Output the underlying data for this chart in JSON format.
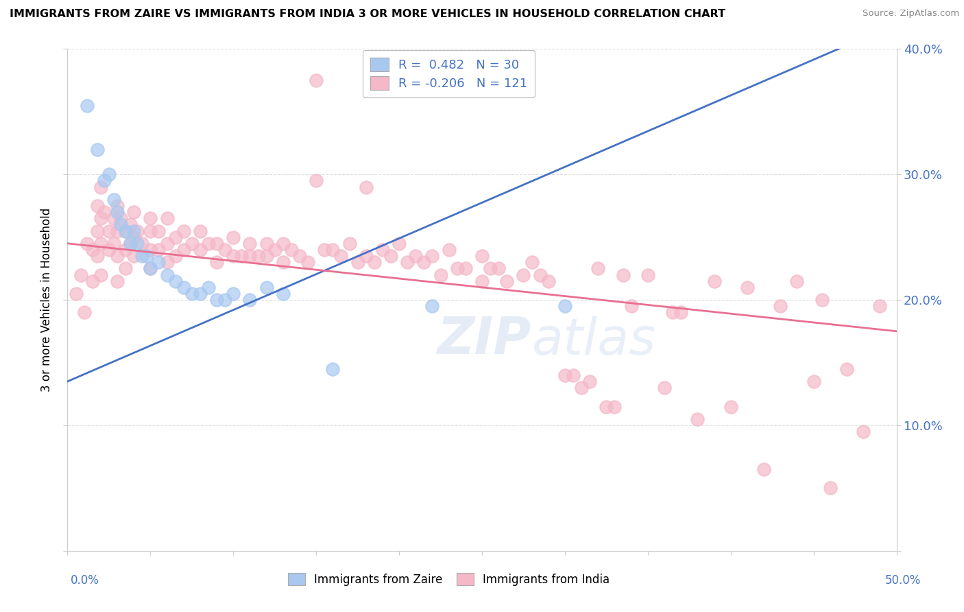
{
  "title": "IMMIGRANTS FROM ZAIRE VS IMMIGRANTS FROM INDIA 3 OR MORE VEHICLES IN HOUSEHOLD CORRELATION CHART",
  "source": "Source: ZipAtlas.com",
  "ylabel_label": "3 or more Vehicles in Household",
  "xlim": [
    0.0,
    0.5
  ],
  "ylim": [
    0.0,
    0.4
  ],
  "zaire_color": "#a8c8f0",
  "india_color": "#f4b8c8",
  "trend_line_color_zaire": "#4472c4",
  "trend_line_color_india": "#e87090",
  "zaire_trend": [
    0.0,
    0.135,
    0.5,
    0.42
  ],
  "india_trend": [
    0.0,
    0.245,
    0.5,
    0.175
  ],
  "zaire_points": [
    [
      0.012,
      0.355
    ],
    [
      0.018,
      0.32
    ],
    [
      0.022,
      0.295
    ],
    [
      0.025,
      0.3
    ],
    [
      0.028,
      0.28
    ],
    [
      0.03,
      0.27
    ],
    [
      0.032,
      0.26
    ],
    [
      0.035,
      0.255
    ],
    [
      0.038,
      0.245
    ],
    [
      0.04,
      0.255
    ],
    [
      0.042,
      0.245
    ],
    [
      0.045,
      0.235
    ],
    [
      0.048,
      0.235
    ],
    [
      0.05,
      0.225
    ],
    [
      0.055,
      0.23
    ],
    [
      0.06,
      0.22
    ],
    [
      0.065,
      0.215
    ],
    [
      0.07,
      0.21
    ],
    [
      0.075,
      0.205
    ],
    [
      0.08,
      0.205
    ],
    [
      0.085,
      0.21
    ],
    [
      0.09,
      0.2
    ],
    [
      0.095,
      0.2
    ],
    [
      0.1,
      0.205
    ],
    [
      0.11,
      0.2
    ],
    [
      0.12,
      0.21
    ],
    [
      0.13,
      0.205
    ],
    [
      0.16,
      0.145
    ],
    [
      0.22,
      0.195
    ],
    [
      0.3,
      0.195
    ]
  ],
  "india_points": [
    [
      0.005,
      0.205
    ],
    [
      0.008,
      0.22
    ],
    [
      0.01,
      0.19
    ],
    [
      0.012,
      0.245
    ],
    [
      0.015,
      0.24
    ],
    [
      0.015,
      0.215
    ],
    [
      0.018,
      0.275
    ],
    [
      0.018,
      0.255
    ],
    [
      0.018,
      0.235
    ],
    [
      0.02,
      0.29
    ],
    [
      0.02,
      0.265
    ],
    [
      0.02,
      0.245
    ],
    [
      0.02,
      0.22
    ],
    [
      0.022,
      0.27
    ],
    [
      0.025,
      0.255
    ],
    [
      0.025,
      0.24
    ],
    [
      0.028,
      0.265
    ],
    [
      0.028,
      0.245
    ],
    [
      0.03,
      0.275
    ],
    [
      0.03,
      0.255
    ],
    [
      0.03,
      0.235
    ],
    [
      0.03,
      0.215
    ],
    [
      0.032,
      0.265
    ],
    [
      0.035,
      0.255
    ],
    [
      0.035,
      0.24
    ],
    [
      0.035,
      0.225
    ],
    [
      0.038,
      0.26
    ],
    [
      0.038,
      0.245
    ],
    [
      0.04,
      0.27
    ],
    [
      0.04,
      0.25
    ],
    [
      0.04,
      0.235
    ],
    [
      0.042,
      0.255
    ],
    [
      0.045,
      0.245
    ],
    [
      0.05,
      0.265
    ],
    [
      0.05,
      0.255
    ],
    [
      0.05,
      0.24
    ],
    [
      0.05,
      0.225
    ],
    [
      0.055,
      0.255
    ],
    [
      0.055,
      0.24
    ],
    [
      0.06,
      0.265
    ],
    [
      0.06,
      0.245
    ],
    [
      0.06,
      0.23
    ],
    [
      0.065,
      0.25
    ],
    [
      0.065,
      0.235
    ],
    [
      0.07,
      0.255
    ],
    [
      0.07,
      0.24
    ],
    [
      0.075,
      0.245
    ],
    [
      0.08,
      0.255
    ],
    [
      0.08,
      0.24
    ],
    [
      0.085,
      0.245
    ],
    [
      0.09,
      0.245
    ],
    [
      0.09,
      0.23
    ],
    [
      0.095,
      0.24
    ],
    [
      0.1,
      0.25
    ],
    [
      0.1,
      0.235
    ],
    [
      0.105,
      0.235
    ],
    [
      0.11,
      0.245
    ],
    [
      0.11,
      0.235
    ],
    [
      0.115,
      0.235
    ],
    [
      0.12,
      0.245
    ],
    [
      0.12,
      0.235
    ],
    [
      0.125,
      0.24
    ],
    [
      0.13,
      0.245
    ],
    [
      0.13,
      0.23
    ],
    [
      0.135,
      0.24
    ],
    [
      0.14,
      0.235
    ],
    [
      0.145,
      0.23
    ],
    [
      0.15,
      0.375
    ],
    [
      0.15,
      0.295
    ],
    [
      0.155,
      0.24
    ],
    [
      0.16,
      0.24
    ],
    [
      0.165,
      0.235
    ],
    [
      0.17,
      0.245
    ],
    [
      0.175,
      0.23
    ],
    [
      0.18,
      0.29
    ],
    [
      0.18,
      0.235
    ],
    [
      0.185,
      0.23
    ],
    [
      0.19,
      0.24
    ],
    [
      0.195,
      0.235
    ],
    [
      0.2,
      0.245
    ],
    [
      0.205,
      0.23
    ],
    [
      0.21,
      0.235
    ],
    [
      0.215,
      0.23
    ],
    [
      0.22,
      0.235
    ],
    [
      0.225,
      0.22
    ],
    [
      0.23,
      0.24
    ],
    [
      0.235,
      0.225
    ],
    [
      0.24,
      0.225
    ],
    [
      0.25,
      0.235
    ],
    [
      0.25,
      0.215
    ],
    [
      0.255,
      0.225
    ],
    [
      0.26,
      0.225
    ],
    [
      0.265,
      0.215
    ],
    [
      0.275,
      0.22
    ],
    [
      0.28,
      0.23
    ],
    [
      0.285,
      0.22
    ],
    [
      0.29,
      0.215
    ],
    [
      0.3,
      0.14
    ],
    [
      0.305,
      0.14
    ],
    [
      0.31,
      0.13
    ],
    [
      0.315,
      0.135
    ],
    [
      0.32,
      0.225
    ],
    [
      0.325,
      0.115
    ],
    [
      0.33,
      0.115
    ],
    [
      0.335,
      0.22
    ],
    [
      0.34,
      0.195
    ],
    [
      0.35,
      0.22
    ],
    [
      0.36,
      0.13
    ],
    [
      0.365,
      0.19
    ],
    [
      0.37,
      0.19
    ],
    [
      0.38,
      0.105
    ],
    [
      0.39,
      0.215
    ],
    [
      0.4,
      0.115
    ],
    [
      0.41,
      0.21
    ],
    [
      0.42,
      0.065
    ],
    [
      0.43,
      0.195
    ],
    [
      0.44,
      0.215
    ],
    [
      0.45,
      0.135
    ],
    [
      0.455,
      0.2
    ],
    [
      0.46,
      0.05
    ],
    [
      0.47,
      0.145
    ],
    [
      0.48,
      0.095
    ],
    [
      0.49,
      0.195
    ]
  ]
}
